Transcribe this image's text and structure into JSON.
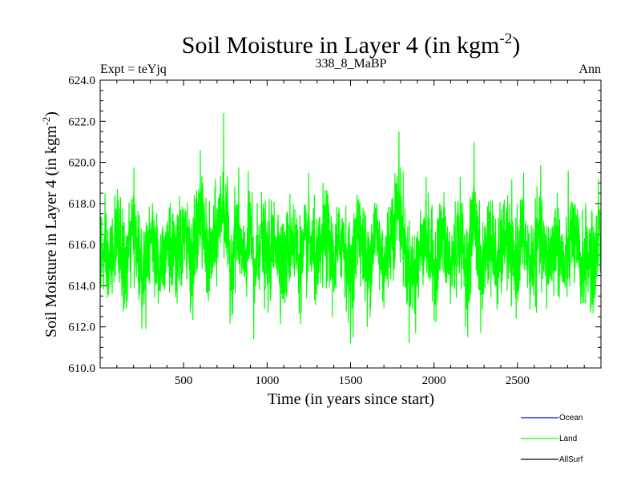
{
  "chart_data": {
    "type": "line",
    "title": "Soil Moisture in Layer 4 (in kgm",
    "title_sup": "-2",
    "title_suffix": ")",
    "subtitle_left": "Expt = teYjq",
    "subtitle_center": "338_8_MaBP",
    "subtitle_right": "Ann",
    "xlabel": "Time (in years since start)",
    "ylabel": "Soil Moisture in Layer 4 (in kgm",
    "ylabel_sup": "-2",
    "ylabel_suffix": ")",
    "xlim": [
      0,
      3000
    ],
    "ylim": [
      610.0,
      624.0
    ],
    "xticks": [
      500,
      1000,
      1500,
      2000,
      2500
    ],
    "xtick_labels": [
      "500",
      "1000",
      "1500",
      "2000",
      "2500"
    ],
    "yticks": [
      610.0,
      612.0,
      614.0,
      616.0,
      618.0,
      620.0,
      622.0,
      624.0
    ],
    "ytick_labels": [
      "610.0",
      "612.0",
      "614.0",
      "616.0",
      "618.0",
      "620.0",
      "622.0",
      "624.0"
    ],
    "series": [
      {
        "name": "Land",
        "color": "#00ff00",
        "stats": {
          "mean": 616.0,
          "std": 1.3,
          "min": 611.2,
          "max": 622.4
        },
        "points": [
          [
            0,
            615.0
          ],
          [
            50,
            612.8
          ],
          [
            100,
            617.6
          ],
          [
            150,
            612.2
          ],
          [
            200,
            618.6
          ],
          [
            250,
            611.9
          ],
          [
            300,
            617.4
          ],
          [
            350,
            613.0
          ],
          [
            400,
            617.0
          ],
          [
            450,
            612.9
          ],
          [
            500,
            617.5
          ],
          [
            550,
            613.2
          ],
          [
            600,
            620.6
          ],
          [
            650,
            613.0
          ],
          [
            700,
            617.9
          ],
          [
            740,
            622.4
          ],
          [
            780,
            612.4
          ],
          [
            820,
            619.2
          ],
          [
            860,
            612.6
          ],
          [
            900,
            618.9
          ],
          [
            920,
            611.4
          ],
          [
            960,
            617.6
          ],
          [
            1000,
            613.1
          ],
          [
            1050,
            617.3
          ],
          [
            1100,
            612.8
          ],
          [
            1150,
            617.6
          ],
          [
            1200,
            613.0
          ],
          [
            1250,
            617.0
          ],
          [
            1300,
            612.6
          ],
          [
            1350,
            617.9
          ],
          [
            1400,
            613.2
          ],
          [
            1450,
            617.5
          ],
          [
            1500,
            611.2
          ],
          [
            1550,
            619.2
          ],
          [
            1600,
            612.0
          ],
          [
            1650,
            618.4
          ],
          [
            1700,
            612.6
          ],
          [
            1750,
            618.6
          ],
          [
            1790,
            621.5
          ],
          [
            1840,
            613.0
          ],
          [
            1890,
            611.7
          ],
          [
            1940,
            617.9
          ],
          [
            2000,
            612.6
          ],
          [
            2050,
            617.4
          ],
          [
            2100,
            612.4
          ],
          [
            2150,
            617.9
          ],
          [
            2200,
            612.2
          ],
          [
            2240,
            621.0
          ],
          [
            2280,
            611.7
          ],
          [
            2330,
            617.6
          ],
          [
            2380,
            612.6
          ],
          [
            2430,
            617.5
          ],
          [
            2480,
            612.4
          ],
          [
            2530,
            617.8
          ],
          [
            2580,
            612.8
          ],
          [
            2630,
            617.4
          ],
          [
            2680,
            613.0
          ],
          [
            2730,
            617.2
          ],
          [
            2780,
            612.6
          ],
          [
            2830,
            617.5
          ],
          [
            2880,
            612.9
          ],
          [
            2920,
            614.8
          ],
          [
            2960,
            612.2
          ],
          [
            2990,
            619.4
          ],
          [
            3000,
            615.8
          ]
        ]
      }
    ],
    "legend": {
      "placement": "bottom-right",
      "entries": [
        {
          "label": "Ocean",
          "color": "#0000ff"
        },
        {
          "label": "Land",
          "color": "#00ff00"
        },
        {
          "label": "AllSurf",
          "color": "#000000"
        }
      ]
    },
    "grid": false
  }
}
